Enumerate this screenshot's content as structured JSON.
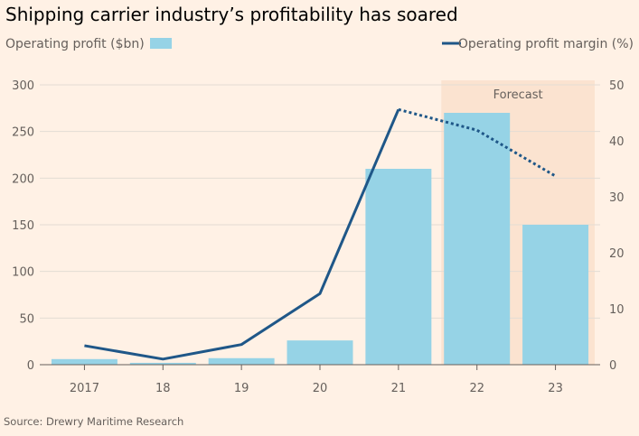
{
  "chart_data": {
    "type": "bar",
    "title": "Shipping carrier industry’s profitability has soared",
    "source": "Source: Drewry Maritime Research",
    "forecast_label": "Forecast",
    "forecast_categories": [
      "22",
      "23"
    ],
    "categories": [
      "2017",
      "18",
      "19",
      "20",
      "21",
      "22",
      "23"
    ],
    "ylim": [
      0,
      300
    ],
    "y_ticks": [
      0,
      50,
      100,
      150,
      200,
      250,
      300
    ],
    "y2lim": [
      0,
      50
    ],
    "y2_ticks": [
      0,
      10,
      20,
      30,
      40,
      50
    ],
    "grid": true,
    "series": [
      {
        "name": "Operating profit ($bn)",
        "type": "bar",
        "axis": "left",
        "color": "#96d3e6",
        "values": [
          6,
          2,
          7,
          26,
          210,
          270,
          150
        ]
      },
      {
        "name": "Operating profit margin (%)",
        "type": "line",
        "axis": "right",
        "color": "#1f5788",
        "values": [
          3.4,
          1.0,
          3.6,
          12.7,
          45.6,
          41.9,
          33.7
        ],
        "dashed_from_index": 4
      }
    ],
    "legend": [
      "Operating profit ($bn)",
      "Operating profit margin (%)"
    ]
  }
}
